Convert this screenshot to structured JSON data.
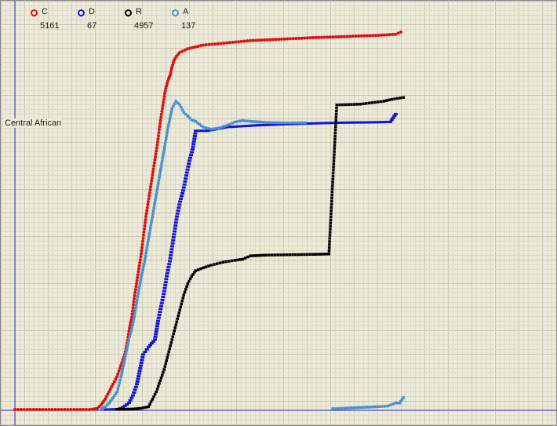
{
  "chart_data": {
    "type": "scatter",
    "title": "",
    "xlabel": "",
    "ylabel": "Central African",
    "xlim": [
      0,
      700
    ],
    "ylim": [
      0,
      100
    ],
    "grid": true,
    "legend_position": "top-left",
    "series": [
      {
        "name": "C",
        "count": "5161",
        "color": "#e01010",
        "points": [
          [
            0,
            0.2
          ],
          [
            95,
            0.2
          ],
          [
            105,
            0.5
          ],
          [
            110,
            1.5
          ],
          [
            115,
            3
          ],
          [
            120,
            5
          ],
          [
            125,
            7
          ],
          [
            130,
            9
          ],
          [
            135,
            12
          ],
          [
            140,
            15
          ],
          [
            143,
            18
          ],
          [
            146,
            22
          ],
          [
            149,
            25
          ],
          [
            152,
            30
          ],
          [
            155,
            34
          ],
          [
            158,
            38
          ],
          [
            161,
            42
          ],
          [
            164,
            47
          ],
          [
            167,
            52
          ],
          [
            170,
            56
          ],
          [
            173,
            60
          ],
          [
            176,
            64
          ],
          [
            179,
            68
          ],
          [
            182,
            72
          ],
          [
            185,
            77
          ],
          [
            188,
            81
          ],
          [
            191,
            85
          ],
          [
            193,
            87
          ],
          [
            196,
            89
          ],
          [
            198,
            90
          ],
          [
            200,
            92
          ],
          [
            203,
            94
          ],
          [
            206,
            95
          ],
          [
            210,
            96
          ],
          [
            220,
            97
          ],
          [
            240,
            98
          ],
          [
            270,
            98.6
          ],
          [
            300,
            99.2
          ],
          [
            340,
            99.6
          ],
          [
            380,
            100
          ],
          [
            420,
            100.3
          ],
          [
            460,
            100.6
          ],
          [
            485,
            100.9
          ],
          [
            492,
            101.5
          ]
        ]
      },
      {
        "name": "D",
        "count": "67",
        "color": "#1414d8",
        "points": [
          [
            115,
            0.2
          ],
          [
            130,
            0.3
          ],
          [
            137,
            0.8
          ],
          [
            145,
            2
          ],
          [
            150,
            4
          ],
          [
            155,
            7
          ],
          [
            160,
            12
          ],
          [
            163,
            15
          ],
          [
            170,
            17
          ],
          [
            178,
            19
          ],
          [
            182,
            24
          ],
          [
            186,
            28
          ],
          [
            190,
            32
          ],
          [
            193,
            36
          ],
          [
            197,
            40
          ],
          [
            200,
            44
          ],
          [
            203,
            48
          ],
          [
            206,
            52
          ],
          [
            210,
            56
          ],
          [
            214,
            59
          ],
          [
            218,
            63
          ],
          [
            222,
            67
          ],
          [
            226,
            70
          ],
          [
            230,
            75
          ],
          [
            245,
            75
          ],
          [
            270,
            76
          ],
          [
            310,
            76.5
          ],
          [
            350,
            76.8
          ],
          [
            380,
            77
          ],
          [
            420,
            77.2
          ],
          [
            460,
            77.3
          ],
          [
            478,
            77.4
          ],
          [
            485,
            79.5
          ]
        ]
      },
      {
        "name": "R",
        "count": "4957",
        "color": "#000000",
        "points": [
          [
            130,
            0.3
          ],
          [
            150,
            0.4
          ],
          [
            160,
            0.6
          ],
          [
            170,
            1
          ],
          [
            175,
            3
          ],
          [
            180,
            5
          ],
          [
            185,
            8
          ],
          [
            190,
            11
          ],
          [
            195,
            15
          ],
          [
            200,
            19
          ],
          [
            205,
            23
          ],
          [
            210,
            27
          ],
          [
            215,
            31
          ],
          [
            220,
            34
          ],
          [
            225,
            36
          ],
          [
            230,
            37.5
          ],
          [
            240,
            38.3
          ],
          [
            250,
            39
          ],
          [
            265,
            39.8
          ],
          [
            280,
            40.3
          ],
          [
            290,
            40.6
          ],
          [
            300,
            41.5
          ],
          [
            320,
            41.7
          ],
          [
            350,
            41.8
          ],
          [
            380,
            41.9
          ],
          [
            400,
            42
          ],
          [
            410,
            82
          ],
          [
            440,
            82.2
          ],
          [
            455,
            82.6
          ],
          [
            470,
            83
          ],
          [
            480,
            83.5
          ],
          [
            495,
            84
          ]
        ]
      },
      {
        "name": "A",
        "count": "137",
        "color": "#4a90d0",
        "points": [
          [
            110,
            0.5
          ],
          [
            115,
            1
          ],
          [
            120,
            2
          ],
          [
            125,
            3.5
          ],
          [
            130,
            5
          ],
          [
            135,
            9
          ],
          [
            140,
            14
          ],
          [
            145,
            19
          ],
          [
            150,
            23
          ],
          [
            155,
            29
          ],
          [
            160,
            35
          ],
          [
            165,
            40
          ],
          [
            170,
            46
          ],
          [
            175,
            52
          ],
          [
            180,
            58
          ],
          [
            185,
            64
          ],
          [
            190,
            70
          ],
          [
            195,
            76
          ],
          [
            200,
            81
          ],
          [
            205,
            83
          ],
          [
            210,
            82
          ],
          [
            215,
            80
          ],
          [
            220,
            79
          ],
          [
            225,
            78
          ],
          [
            230,
            77.6
          ],
          [
            240,
            76
          ],
          [
            250,
            75.5
          ],
          [
            260,
            75.8
          ],
          [
            270,
            76.5
          ],
          [
            280,
            77.4
          ],
          [
            290,
            77.8
          ],
          [
            300,
            77.6
          ],
          [
            320,
            77.3
          ],
          [
            340,
            77.2
          ],
          [
            360,
            77.2
          ],
          [
            370,
            77.2
          ],
          [
            405,
            0.5
          ],
          [
            420,
            0.6
          ],
          [
            440,
            0.8
          ],
          [
            460,
            1
          ],
          [
            475,
            1.2
          ],
          [
            485,
            2
          ],
          [
            490,
            2
          ],
          [
            495,
            3.5
          ]
        ]
      }
    ]
  }
}
